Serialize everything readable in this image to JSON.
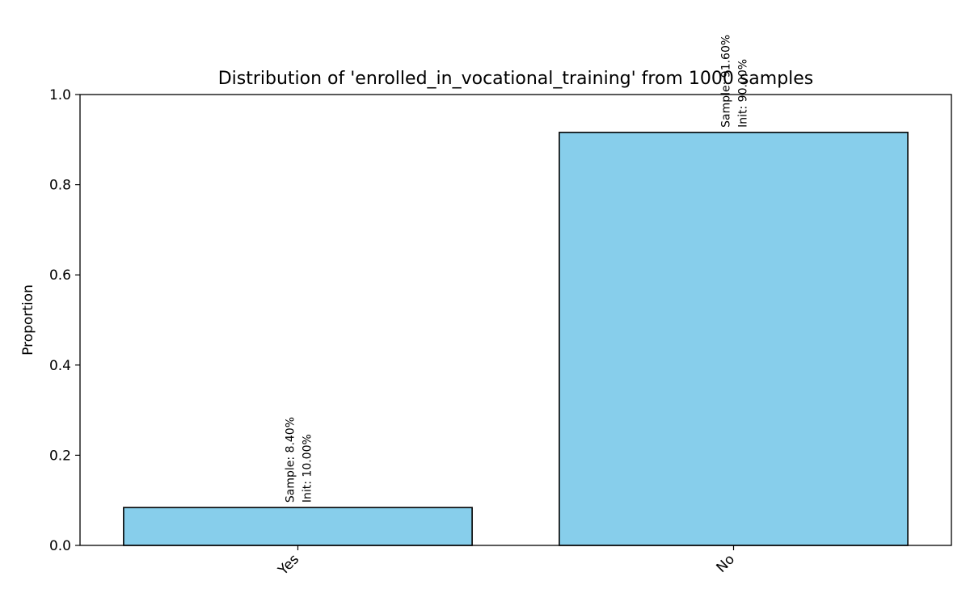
{
  "chart_data": {
    "type": "bar",
    "title": "Distribution of 'enrolled_in_vocational_training' from 1000 samples",
    "xlabel": "",
    "ylabel": "Proportion",
    "ylim": [
      0,
      1.0
    ],
    "yticks": [
      "0.0",
      "0.2",
      "0.4",
      "0.6",
      "0.8",
      "1.0"
    ],
    "categories": [
      "Yes",
      "No"
    ],
    "values": [
      0.084,
      0.916
    ],
    "bar_labels": [
      {
        "sample": "Sample: 8.40%",
        "init": "Init: 10.00%"
      },
      {
        "sample": "Sample: 91.60%",
        "init": "Init: 90.00%"
      }
    ],
    "bar_color": "#87CEEB",
    "edge_color": "#000000",
    "grid": false,
    "legend": "none"
  }
}
